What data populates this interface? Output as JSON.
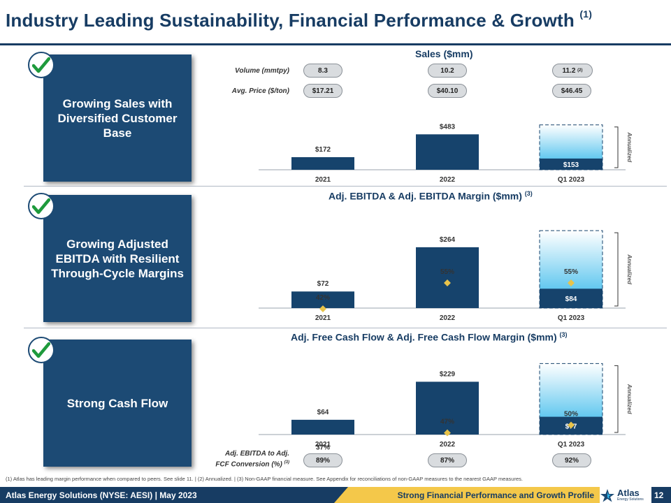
{
  "title": "Industry Leading Sustainability, Financial Performance & Growth",
  "title_note": "(1)",
  "sections": [
    {
      "label": "Growing Sales with Diversified Customer Base"
    },
    {
      "label": "Growing Adjusted EBITDA with Resilient Through-Cycle Margins"
    },
    {
      "label": "Strong Cash Flow"
    }
  ],
  "sales_header": {
    "title": "Sales ($mm)",
    "volume_label": "Volume (mmtpy)",
    "price_label": "Avg. Price ($/ton)",
    "volumes": [
      "8.3",
      "10.2",
      "11.2"
    ],
    "volume_note": "(2)",
    "prices": [
      "$17.21",
      "$40.10",
      "$46.45"
    ]
  },
  "conversion": {
    "label_line1": "Adj. EBITDA to Adj.",
    "label_line2": "FCF Conversion (%)",
    "label_note": "(3)",
    "values": [
      "89%",
      "87%",
      "92%"
    ]
  },
  "chart_data": [
    {
      "type": "bar",
      "title": "Sales ($mm)",
      "title_note": "",
      "categories": [
        "2021",
        "2022",
        "Q1 2023"
      ],
      "values": [
        172,
        483,
        153
      ],
      "value_labels": [
        "$172",
        "$483",
        "$153"
      ],
      "annualized_value": 612,
      "annualized_label": "Annualized",
      "colors": {
        "bar": "#16436c",
        "annualized": "#2fb6ea",
        "marker": "#e8c34a"
      }
    },
    {
      "type": "bar",
      "title": "Adj. EBITDA & Adj. EBITDA Margin ($mm)",
      "title_note": "(3)",
      "categories": [
        "2021",
        "2022",
        "Q1 2023"
      ],
      "values": [
        72,
        264,
        84
      ],
      "value_labels": [
        "$72",
        "$264",
        "$84"
      ],
      "annualized_value": 336,
      "annualized_label": "Annualized",
      "margins": [
        42,
        55,
        55
      ],
      "margin_labels": [
        "42%",
        "55%",
        "55%"
      ],
      "colors": {
        "bar": "#16436c",
        "annualized": "#2fb6ea",
        "marker": "#e8c34a"
      }
    },
    {
      "type": "bar",
      "title": "Adj. Free Cash Flow & Adj. Free Cash Flow Margin ($mm)",
      "title_note": "(3)",
      "categories": [
        "2021",
        "2022",
        "Q1 2023"
      ],
      "values": [
        64,
        229,
        77
      ],
      "value_labels": [
        "$64",
        "$229",
        "$77"
      ],
      "annualized_value": 308,
      "annualized_label": "Annualized",
      "margins": [
        37,
        47,
        50
      ],
      "margin_labels": [
        "37%",
        "47%",
        "50%"
      ],
      "colors": {
        "bar": "#16436c",
        "annualized": "#2fb6ea",
        "marker": "#e8c34a"
      }
    }
  ],
  "footnote": "(1)   Atlas has leading margin performance when compared to peers. See slide 11. | (2) Annualized. | (3) Non-GAAP financial measure. See Appendix for reconciliations of non-GAAP measures to the nearest GAAP measures.",
  "footer": {
    "company": "Atlas Energy Solutions (NYSE: AESI)  |  May 2023",
    "section": "Strong Financial Performance and Growth Profile",
    "logo_text": "Atlas",
    "logo_sub": "Energy Solutions",
    "page": "12"
  }
}
